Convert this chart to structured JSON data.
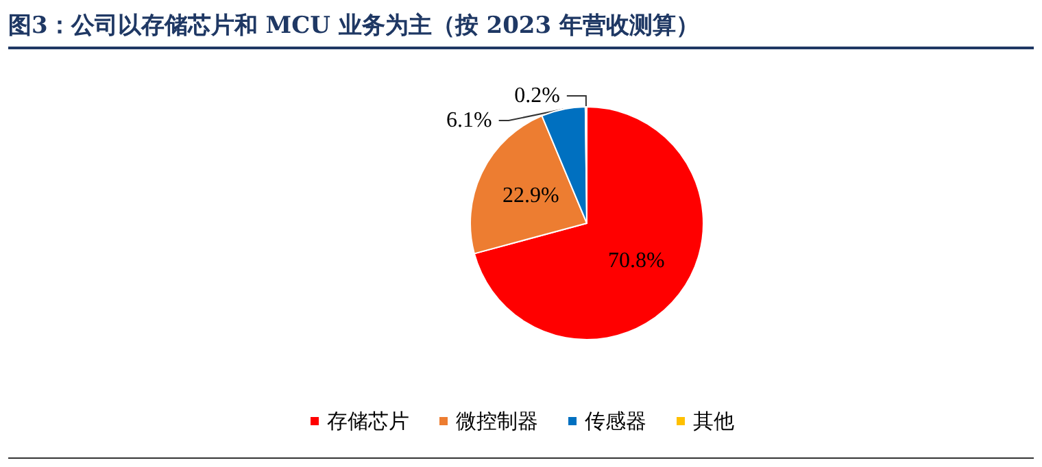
{
  "chart_data": {
    "type": "pie",
    "title": "图3：公司以存储芯片和 MCU 业务为主（按 2023 年营收测算）",
    "categories": [
      "存储芯片",
      "微控制器",
      "传感器",
      "其他"
    ],
    "values": [
      70.8,
      22.9,
      6.1,
      0.2
    ],
    "colors": [
      "#ff0000",
      "#ed7d31",
      "#0070c0",
      "#ffc000"
    ],
    "value_labels": [
      "70.8%",
      "22.9%",
      "6.1%",
      "0.2%"
    ],
    "legend": "bottom"
  }
}
